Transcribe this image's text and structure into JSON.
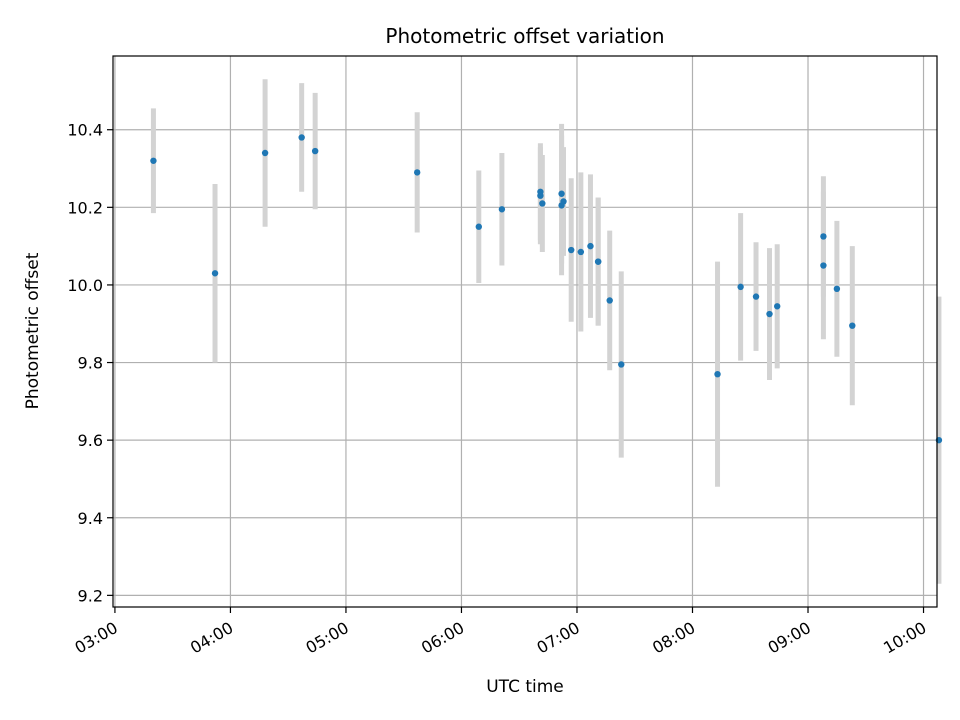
{
  "chart_data": {
    "type": "scatter",
    "title": "Photometric offset variation",
    "xlabel": "UTC time",
    "ylabel": "Photometric offset",
    "x_ticks": [
      "03:00",
      "04:00",
      "05:00",
      "06:00",
      "07:00",
      "08:00",
      "09:00",
      "10:00"
    ],
    "y_ticks": [
      "9.2",
      "9.4",
      "9.6",
      "9.8",
      "10.0",
      "10.2",
      "10.4"
    ],
    "xlim": [
      "02:59",
      "10:07"
    ],
    "ylim": [
      9.17,
      10.59
    ],
    "grid": true,
    "colors": {
      "point": "#1f77b4",
      "errorbar": "#d3d3d3",
      "grid": "#b0b0b0"
    },
    "series": [
      {
        "x": [
          "03:20",
          "03:52",
          "04:18",
          "04:37",
          "04:44",
          "05:37",
          "06:09",
          "06:21",
          "06:41",
          "06:41",
          "06:42",
          "06:52",
          "06:52",
          "06:53",
          "06:57",
          "07:02",
          "07:07",
          "07:11",
          "07:11",
          "07:17",
          "07:23",
          "08:13",
          "08:25",
          "08:33",
          "08:40",
          "08:44",
          "09:08",
          "09:08",
          "09:15",
          "09:23",
          "10:08"
        ],
        "y": [
          10.32,
          10.03,
          10.34,
          10.38,
          10.345,
          10.29,
          10.15,
          10.195,
          10.24,
          10.23,
          10.21,
          10.205,
          10.235,
          10.215,
          10.09,
          10.085,
          10.1,
          10.06,
          10.06,
          9.96,
          9.795,
          9.77,
          9.995,
          9.97,
          9.925,
          9.945,
          10.125,
          10.05,
          9.99,
          9.895,
          9.6
        ],
        "err": [
          0.135,
          0.23,
          0.19,
          0.14,
          0.15,
          0.155,
          0.145,
          0.145,
          0.125,
          0.125,
          0.125,
          0.18,
          0.18,
          0.14,
          0.185,
          0.205,
          0.185,
          0.165,
          0.165,
          0.18,
          0.24,
          0.29,
          0.19,
          0.14,
          0.17,
          0.16,
          0.155,
          0.19,
          0.175,
          0.205,
          0.37
        ]
      }
    ]
  }
}
